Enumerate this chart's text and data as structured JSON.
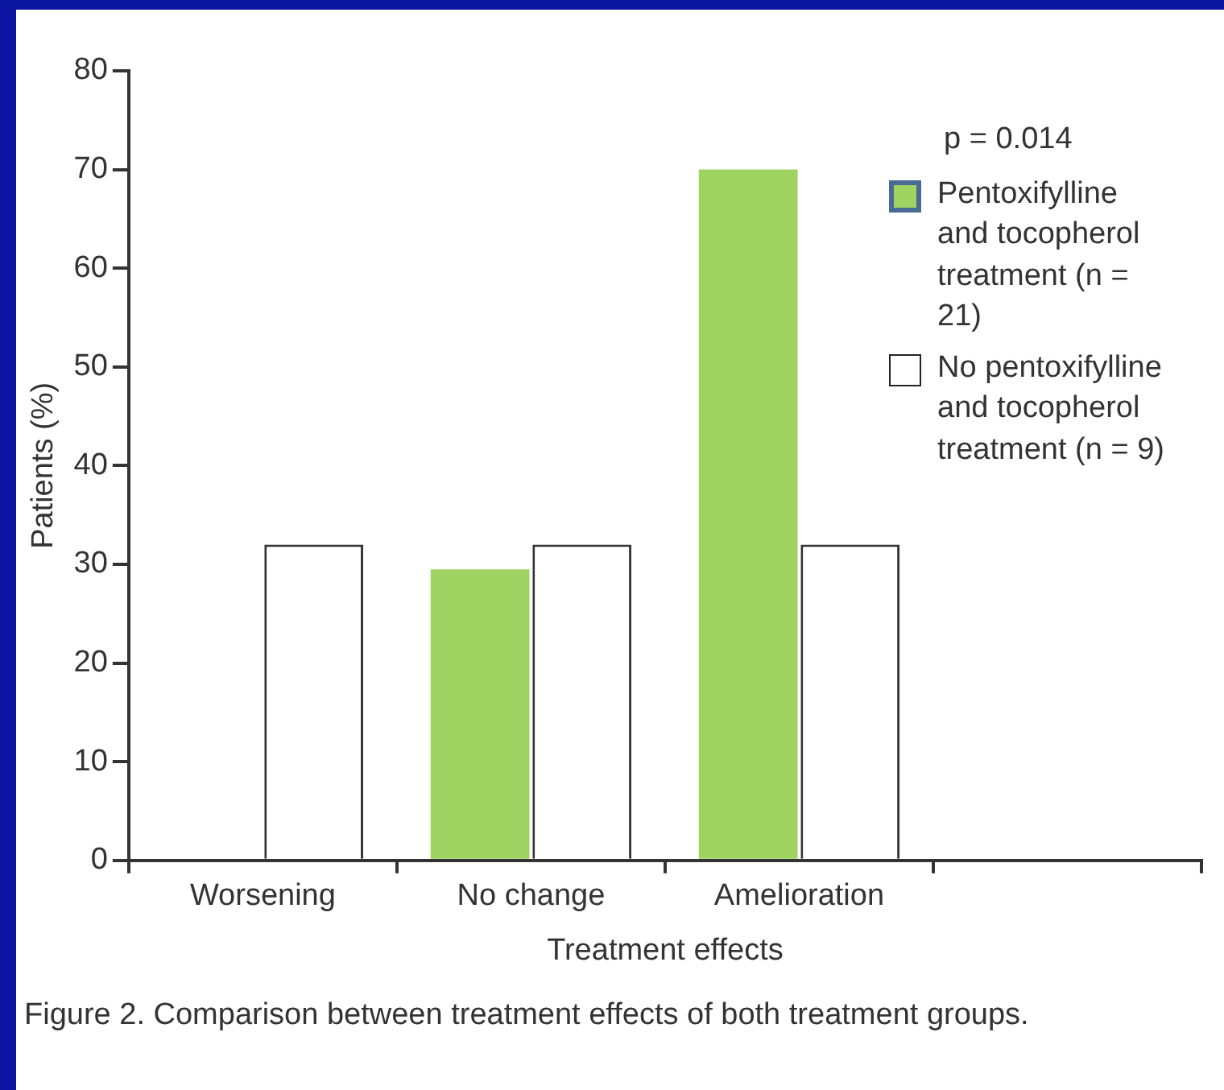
{
  "chart_data": {
    "type": "bar",
    "xlabel": "Treatment effects",
    "ylabel": "Patients (%)",
    "categories": [
      "Worsening",
      "No change",
      "Amelioration",
      null
    ],
    "series": [
      {
        "name": "Pentoxifylline and tocopherol treatment (n = 21)",
        "color": "#a0d462",
        "values": [
          0,
          29.5,
          70,
          null
        ]
      },
      {
        "name": "No pentoxifylline and tocopherol treatment (n = 9)",
        "color": "#ffffff",
        "values": [
          32,
          32,
          32,
          null
        ]
      }
    ],
    "ylim": [
      0,
      80
    ],
    "yticks": [
      0,
      10,
      20,
      30,
      40,
      50,
      60,
      70,
      80
    ],
    "legend": "top right",
    "annotations": [
      "p = 0.014",
      "Figure 2. Comparison between treatment effects of both treatment groups."
    ]
  }
}
